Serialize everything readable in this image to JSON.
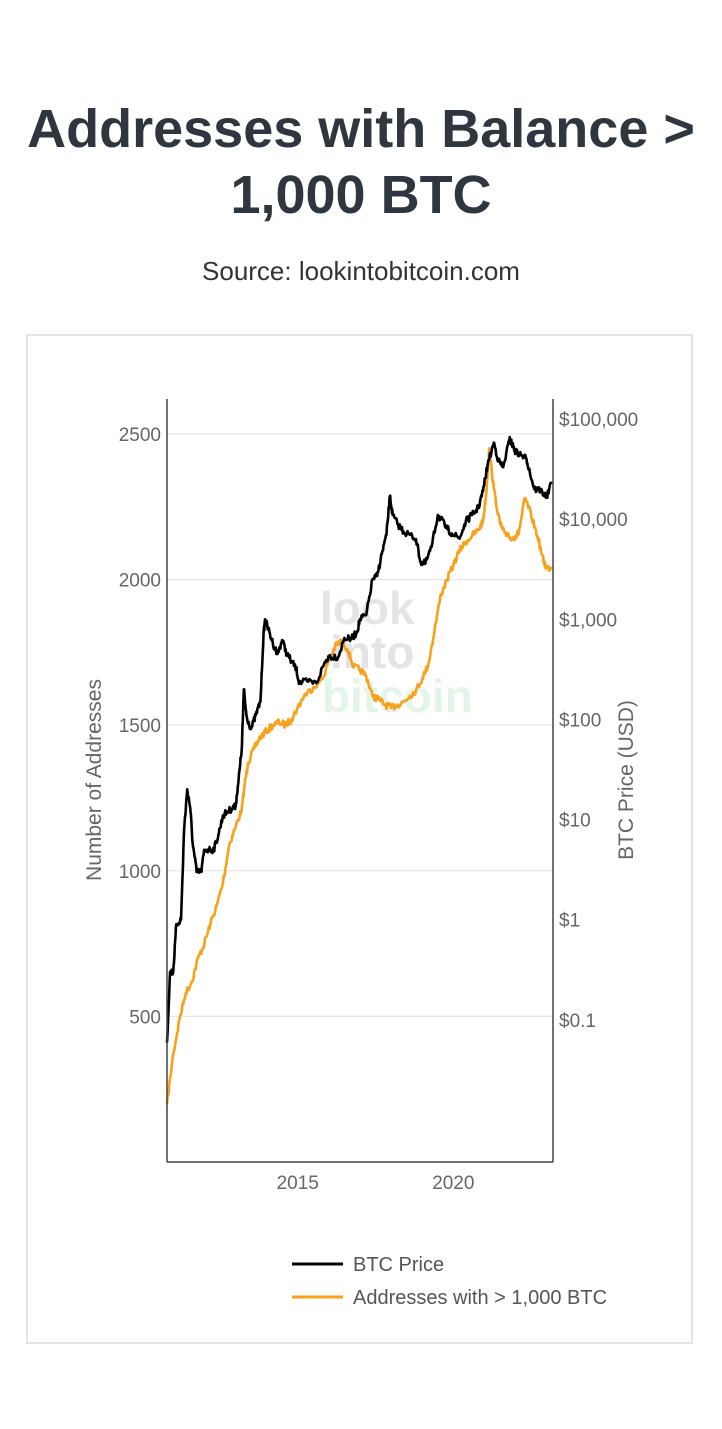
{
  "header": {
    "title_line1": "Addresses with Balance >",
    "title_line2": "1,000 BTC",
    "subtitle": "Source: lookintobitcoin.com"
  },
  "watermark": {
    "line1": "look",
    "line2": "into",
    "line3": "bitcoin"
  },
  "colors": {
    "btc_price": "#000000",
    "addresses": "#f7a21a",
    "grid": "#e6e6e6",
    "axis": "#444444"
  },
  "chart_data": {
    "type": "line",
    "title": "Addresses with Balance > 1,000 BTC",
    "xlabel": "",
    "ylabel_left": "Number of Addresses",
    "ylabel_right": "BTC Price (USD)",
    "x_range": [
      2010.8,
      2023.2
    ],
    "x_ticks": [
      2015,
      2020
    ],
    "x_tick_labels": [
      "2015",
      "2020"
    ],
    "y_left_range": [
      0,
      2620
    ],
    "y_left_ticks": [
      500,
      1000,
      1500,
      2000,
      2500
    ],
    "y_left_tick_labels": [
      "500",
      "1000",
      "1500",
      "2000",
      "2500"
    ],
    "y_right_scale": "log",
    "y_right_range_log10": [
      -2.42,
      5.2
    ],
    "y_right_ticks_log10": [
      -1,
      0,
      1,
      2,
      3,
      4,
      5
    ],
    "y_right_tick_labels": [
      "$0.1",
      "$1",
      "$10",
      "$100",
      "$1,000",
      "$10,000",
      "$100,000"
    ],
    "grid": true,
    "legend_position": "bottom-center",
    "series": [
      {
        "name": "BTC Price",
        "axis": "right",
        "color": "#000000",
        "x": [
          2010.8,
          2010.9,
          2011.0,
          2011.1,
          2011.25,
          2011.35,
          2011.45,
          2011.55,
          2011.62,
          2011.75,
          2011.9,
          2012.0,
          2012.15,
          2012.3,
          2012.45,
          2012.6,
          2012.75,
          2012.9,
          2013.0,
          2013.1,
          2013.2,
          2013.27,
          2013.35,
          2013.5,
          2013.65,
          2013.8,
          2013.9,
          2013.95,
          2014.05,
          2014.2,
          2014.35,
          2014.5,
          2014.65,
          2014.8,
          2014.95,
          2015.05,
          2015.3,
          2015.6,
          2015.85,
          2016.0,
          2016.3,
          2016.5,
          2016.7,
          2016.9,
          2017.0,
          2017.2,
          2017.4,
          2017.55,
          2017.7,
          2017.85,
          2017.96,
          2018.05,
          2018.2,
          2018.4,
          2018.6,
          2018.8,
          2018.95,
          2019.1,
          2019.3,
          2019.5,
          2019.6,
          2019.8,
          2019.95,
          2020.2,
          2020.4,
          2020.6,
          2020.8,
          2020.95,
          2021.1,
          2021.3,
          2021.45,
          2021.6,
          2021.8,
          2021.88,
          2022.0,
          2022.2,
          2022.35,
          2022.45,
          2022.6,
          2022.8,
          2023.0,
          2023.15
        ],
        "values": [
          0.06,
          0.3,
          0.3,
          0.9,
          1.0,
          8.0,
          20.0,
          13.0,
          6.0,
          3.0,
          3.0,
          5.0,
          5.0,
          5.0,
          7.0,
          11.0,
          12.0,
          13.0,
          13.5,
          25.0,
          50.0,
          200.0,
          110.0,
          80.0,
          110.0,
          150.0,
          700.0,
          1000.0,
          800.0,
          580.0,
          450.0,
          620.0,
          450.0,
          380.0,
          320.0,
          230.0,
          240.0,
          230.0,
          360.0,
          430.0,
          420.0,
          650.0,
          630.0,
          740.0,
          1000.0,
          1100.0,
          2500.0,
          2700.0,
          4500.0,
          7000.0,
          17000.0,
          11000.0,
          9000.0,
          7500.0,
          7000.0,
          6300.0,
          3700.0,
          3600.0,
          5300.0,
          11000.0,
          10000.0,
          8000.0,
          7200.0,
          6400.0,
          9500.0,
          11000.0,
          13000.0,
          19000.0,
          35000.0,
          58000.0,
          38000.0,
          33000.0,
          62000.0,
          57000.0,
          47000.0,
          43000.0,
          40000.0,
          30000.0,
          20000.0,
          19500.0,
          16500.0,
          23000.0
        ]
      },
      {
        "name": "Addresses with > 1,000 BTC",
        "axis": "left",
        "color": "#f7a21a",
        "x": [
          2010.8,
          2011.0,
          2011.2,
          2011.4,
          2011.6,
          2011.8,
          2012.0,
          2012.2,
          2012.4,
          2012.6,
          2012.8,
          2013.0,
          2013.2,
          2013.3,
          2013.4,
          2013.6,
          2013.8,
          2014.0,
          2014.2,
          2014.4,
          2014.6,
          2014.8,
          2015.0,
          2015.2,
          2015.5,
          2015.8,
          2016.0,
          2016.2,
          2016.4,
          2016.6,
          2016.8,
          2017.0,
          2017.2,
          2017.4,
          2017.6,
          2017.8,
          2018.0,
          2018.2,
          2018.4,
          2018.6,
          2018.8,
          2019.0,
          2019.2,
          2019.4,
          2019.6,
          2019.8,
          2020.0,
          2020.2,
          2020.4,
          2020.6,
          2020.8,
          2020.95,
          2021.05,
          2021.15,
          2021.3,
          2021.5,
          2021.7,
          2021.9,
          2022.0,
          2022.1,
          2022.3,
          2022.5,
          2022.7,
          2022.9,
          2023.0,
          2023.15
        ],
        "values": [
          200,
          370,
          490,
          580,
          620,
          700,
          750,
          820,
          880,
          960,
          1090,
          1150,
          1210,
          1300,
          1370,
          1420,
          1460,
          1480,
          1500,
          1510,
          1500,
          1520,
          1560,
          1600,
          1630,
          1660,
          1720,
          1770,
          1790,
          1760,
          1700,
          1690,
          1670,
          1600,
          1590,
          1570,
          1560,
          1570,
          1580,
          1600,
          1620,
          1660,
          1710,
          1830,
          1950,
          2000,
          2050,
          2100,
          2130,
          2150,
          2170,
          2200,
          2290,
          2450,
          2310,
          2190,
          2150,
          2140,
          2150,
          2160,
          2280,
          2220,
          2150,
          2060,
          2040,
          2040
        ]
      }
    ]
  },
  "legend": {
    "items": [
      {
        "label": "BTC Price",
        "color": "#000000"
      },
      {
        "label": "Addresses with > 1,000 BTC",
        "color": "#f7a21a"
      }
    ]
  }
}
